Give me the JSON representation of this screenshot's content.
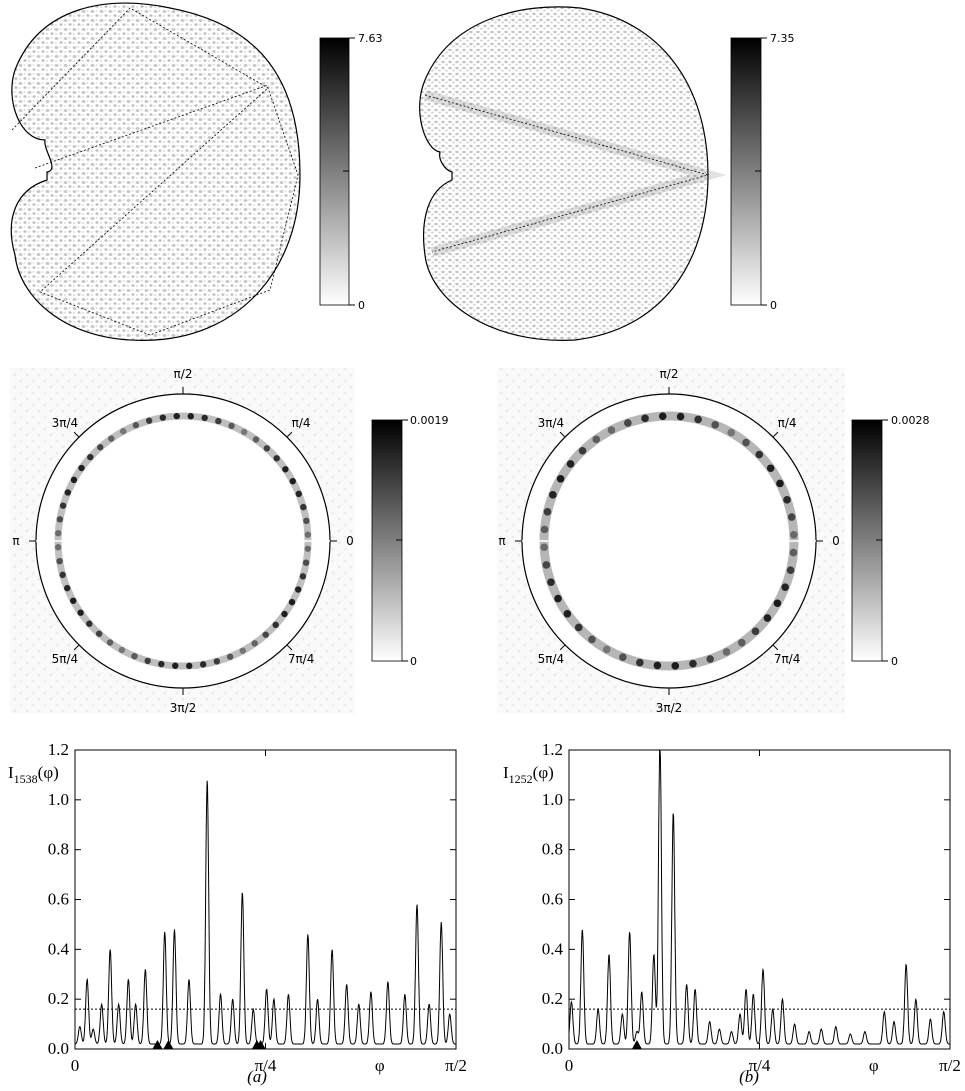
{
  "figure": {
    "panels": [
      {
        "caption": "(a)",
        "density_colorbar": {
          "max_label": "7.63",
          "min_label": "0"
        },
        "husimi_colorbar": {
          "max_label": "0.0019",
          "min_label": "0"
        },
        "angle_labels": [
          "0",
          "π/4",
          "π/2",
          "3π/4",
          "π",
          "5π/4",
          "3π/2",
          "7π/4"
        ],
        "ylabel": {
          "base": "I",
          "sub": "1538",
          "tail": "(φ)"
        }
      },
      {
        "caption": "(b)",
        "density_colorbar": {
          "max_label": "7.35",
          "min_label": "0"
        },
        "husimi_colorbar": {
          "max_label": "0.0028",
          "min_label": "0"
        },
        "angle_labels": [
          "0",
          "π/4",
          "π/2",
          "3π/4",
          "π",
          "5π/4",
          "3π/2",
          "7π/4"
        ],
        "ylabel": {
          "base": "I",
          "sub": "1252",
          "tail": "(φ)"
        }
      }
    ]
  },
  "chart_data": [
    {
      "type": "line",
      "xlabel": "φ",
      "ylabel": "I1538(φ)",
      "x_tick_labels": [
        "0",
        "π/4",
        "φ",
        "π/2"
      ],
      "y_tick_labels": [
        "0.0",
        "0.2",
        "0.4",
        "0.6",
        "0.8",
        "1.0",
        "1.2"
      ],
      "xlim": [
        0,
        1.5708
      ],
      "ylim": [
        0,
        1.2
      ],
      "threshold": 0.16,
      "markers_x": [
        0.34,
        0.385,
        0.75,
        0.765
      ],
      "peaks": [
        [
          0.02,
          0.07
        ],
        [
          0.05,
          0.26
        ],
        [
          0.075,
          0.06
        ],
        [
          0.11,
          0.16
        ],
        [
          0.145,
          0.38
        ],
        [
          0.18,
          0.16
        ],
        [
          0.22,
          0.26
        ],
        [
          0.25,
          0.16
        ],
        [
          0.29,
          0.3
        ],
        [
          0.37,
          0.45
        ],
        [
          0.41,
          0.46
        ],
        [
          0.47,
          0.26
        ],
        [
          0.545,
          1.06
        ],
        [
          0.6,
          0.2
        ],
        [
          0.65,
          0.18
        ],
        [
          0.69,
          0.61
        ],
        [
          0.735,
          0.14
        ],
        [
          0.79,
          0.22
        ],
        [
          0.82,
          0.18
        ],
        [
          0.88,
          0.2
        ],
        [
          0.96,
          0.44
        ],
        [
          1.0,
          0.18
        ],
        [
          1.06,
          0.38
        ],
        [
          1.12,
          0.24
        ],
        [
          1.17,
          0.16
        ],
        [
          1.22,
          0.21
        ],
        [
          1.29,
          0.25
        ],
        [
          1.36,
          0.2
        ],
        [
          1.41,
          0.56
        ],
        [
          1.46,
          0.16
        ],
        [
          1.51,
          0.49
        ],
        [
          1.545,
          0.12
        ]
      ]
    },
    {
      "type": "line",
      "xlabel": "φ",
      "ylabel": "I1252(φ)",
      "x_tick_labels": [
        "0",
        "π/4",
        "φ",
        "π/2"
      ],
      "y_tick_labels": [
        "0.0",
        "0.2",
        "0.4",
        "0.6",
        "0.8",
        "1.0",
        "1.2"
      ],
      "xlim": [
        0,
        1.5708
      ],
      "ylim": [
        0,
        1.2
      ],
      "threshold": 0.16,
      "markers_x": [
        0.28
      ],
      "peaks": [
        [
          0.01,
          0.17
        ],
        [
          0.055,
          0.46
        ],
        [
          0.12,
          0.14
        ],
        [
          0.165,
          0.36
        ],
        [
          0.22,
          0.12
        ],
        [
          0.25,
          0.45
        ],
        [
          0.28,
          0.05
        ],
        [
          0.3,
          0.21
        ],
        [
          0.35,
          0.36
        ],
        [
          0.375,
          1.22
        ],
        [
          0.43,
          0.93
        ],
        [
          0.485,
          0.24
        ],
        [
          0.52,
          0.22
        ],
        [
          0.58,
          0.09
        ],
        [
          0.62,
          0.06
        ],
        [
          0.67,
          0.05
        ],
        [
          0.705,
          0.12
        ],
        [
          0.73,
          0.22
        ],
        [
          0.76,
          0.2
        ],
        [
          0.8,
          0.3
        ],
        [
          0.84,
          0.14
        ],
        [
          0.88,
          0.18
        ],
        [
          0.93,
          0.08
        ],
        [
          0.99,
          0.05
        ],
        [
          1.04,
          0.06
        ],
        [
          1.1,
          0.07
        ],
        [
          1.16,
          0.04
        ],
        [
          1.22,
          0.05
        ],
        [
          1.3,
          0.13
        ],
        [
          1.34,
          0.09
        ],
        [
          1.39,
          0.32
        ],
        [
          1.43,
          0.18
        ],
        [
          1.49,
          0.1
        ],
        [
          1.545,
          0.13
        ]
      ]
    }
  ]
}
